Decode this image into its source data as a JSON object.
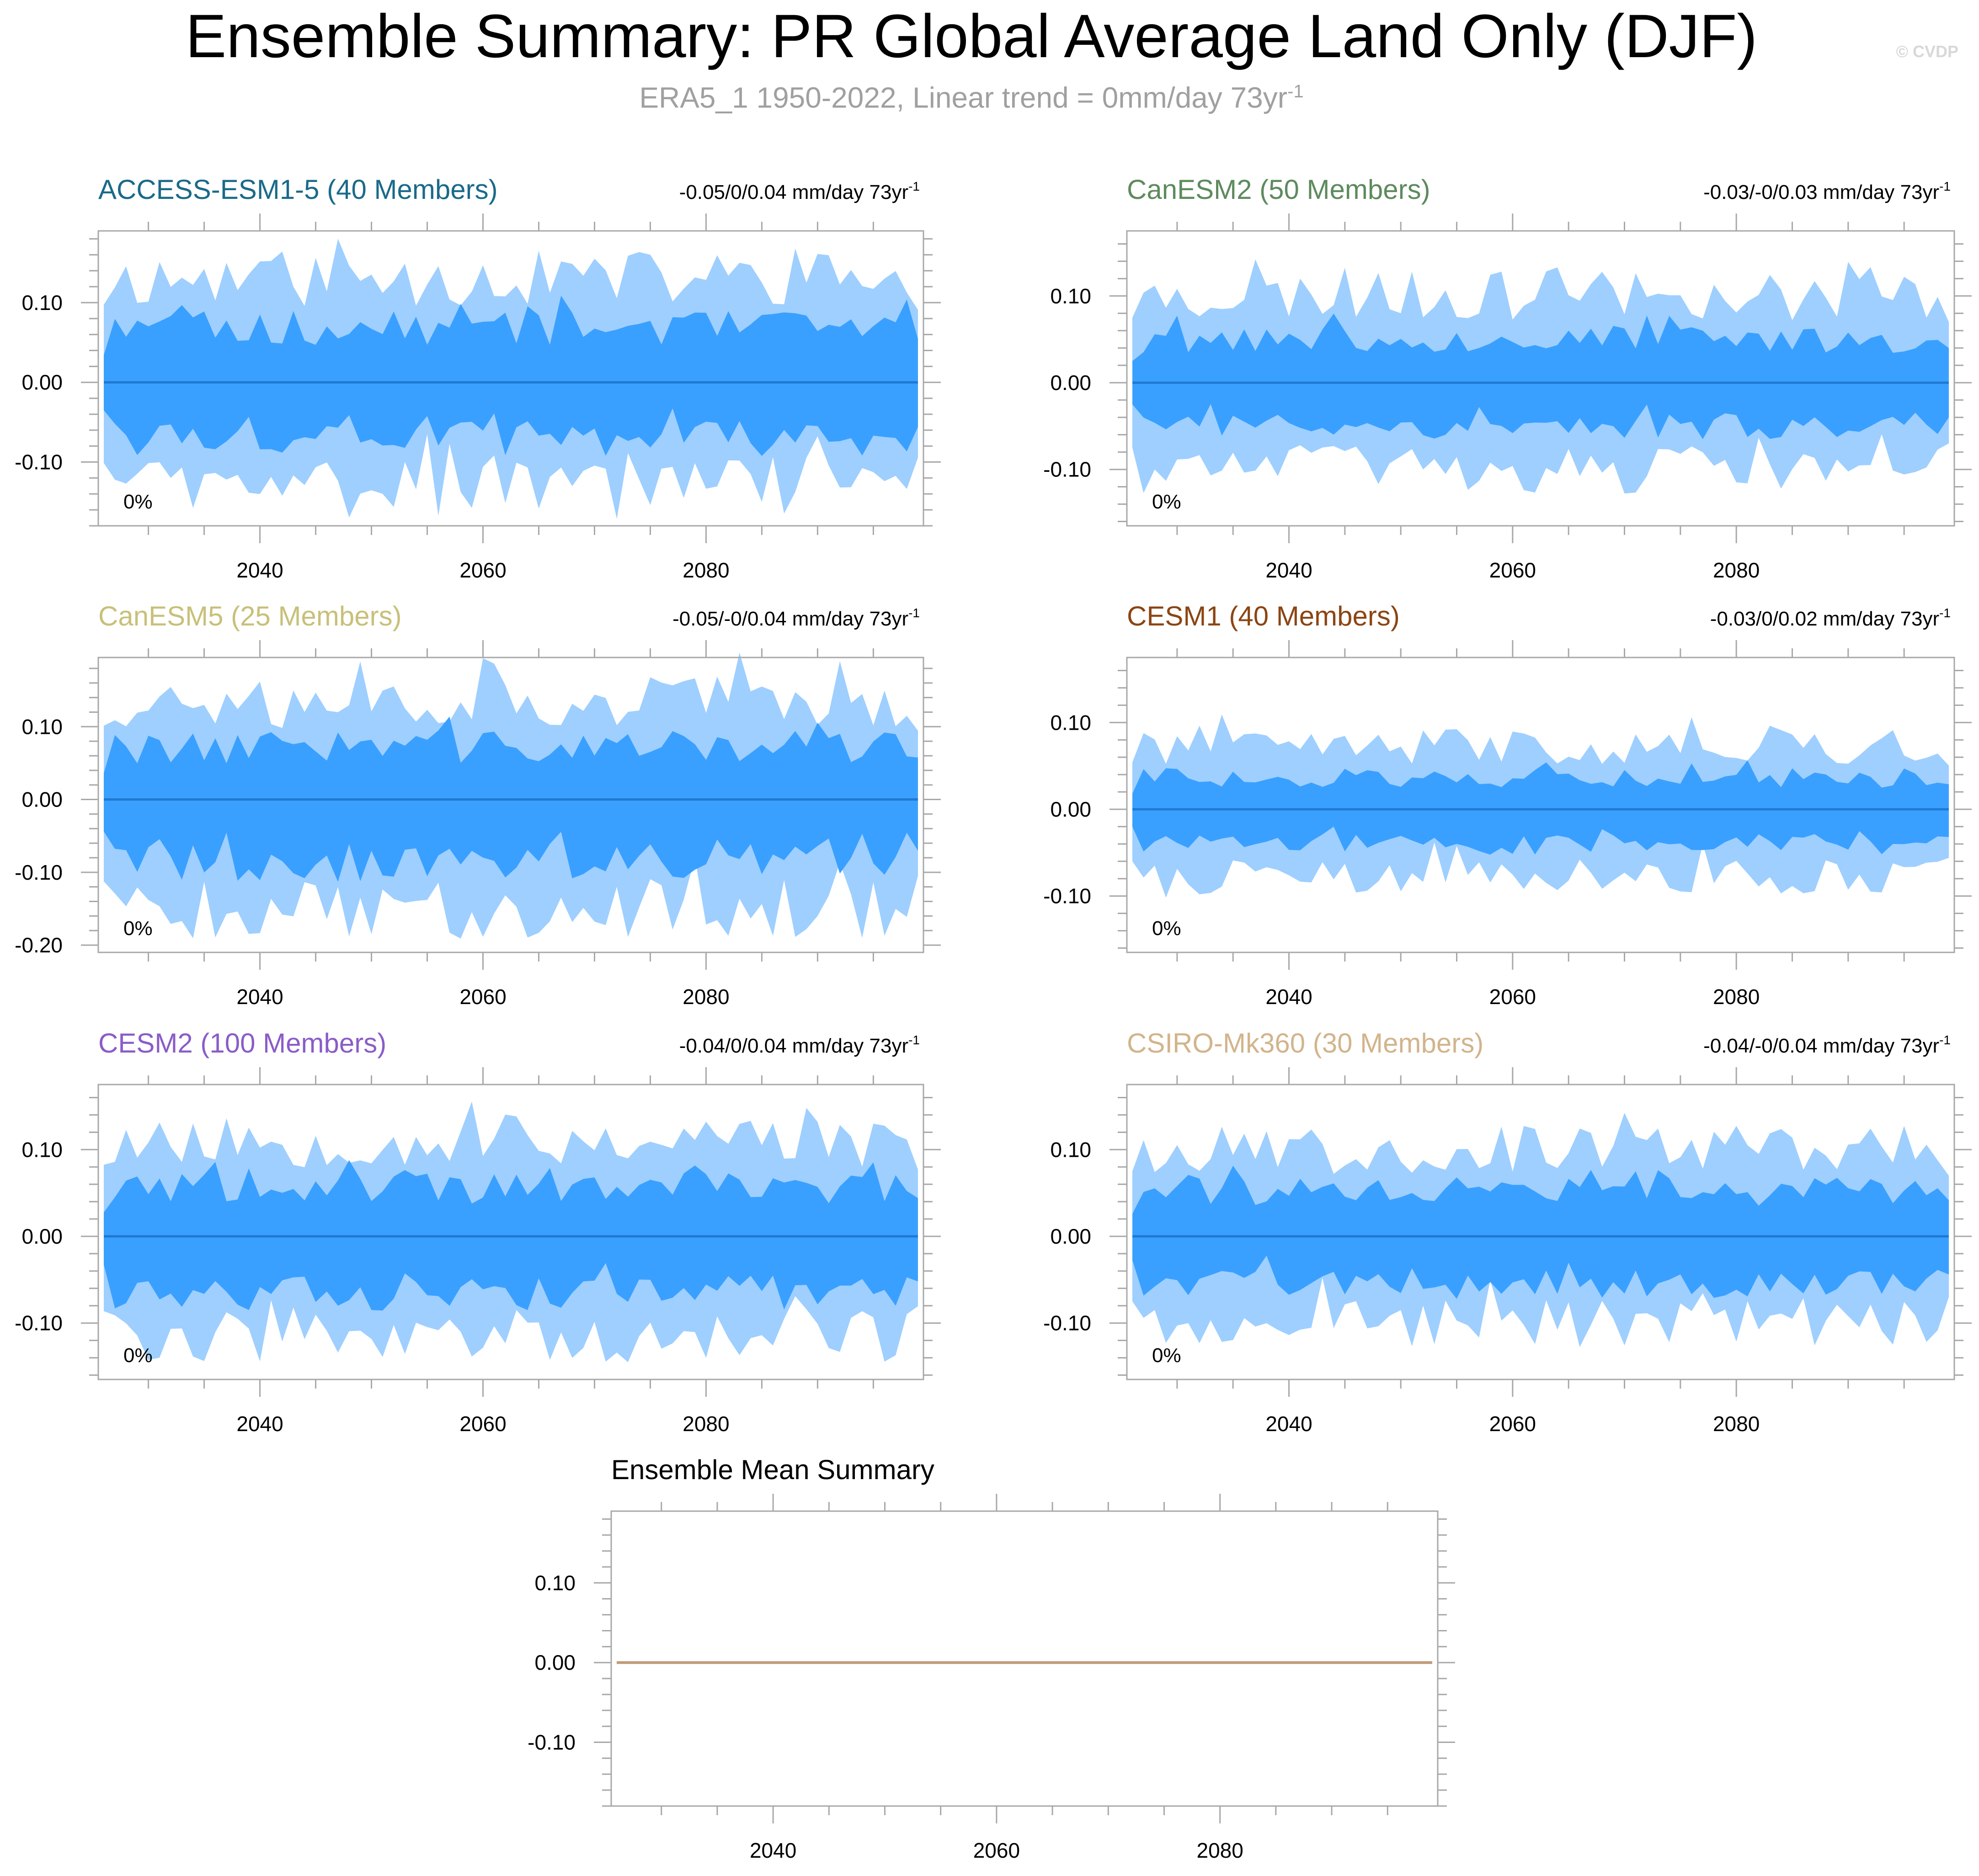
{
  "header": {
    "title": "Ensemble Summary: PR Global Average Land Only (DJF)",
    "subtitle": "ERA5_1 1950-2022, Linear trend = 0mm/day 73yr",
    "subtitle_sup": "-1",
    "copyright": "© CVDP"
  },
  "colors": {
    "outer_band": "#9ecfff",
    "inner_band": "#3aa0ff",
    "mean_line": "#1f78d0",
    "ensemble_mean_line": "#c09a78"
  },
  "chart_data": [
    {
      "type": "area",
      "title": "ACCESS-ESM1-5 (40 Members)",
      "title_color": "#1a6a8a",
      "trend_label": "-0.05/0/0.04 mm/day 73yr",
      "trend_sup": "-1",
      "percent_label": "0%",
      "xlim": [
        2026,
        2099
      ],
      "ylim": [
        -0.18,
        0.19
      ],
      "xticks": [
        2040,
        2060,
        2080
      ],
      "xtick_labels": [
        "2040",
        "2060",
        "2080"
      ],
      "yticks": [
        0.1,
        0.0,
        -0.1
      ],
      "ytick_labels": [
        "0.10",
        "0.00",
        "-0.10"
      ],
      "bands": {
        "outer_max": 0.13,
        "inner_max": 0.068,
        "inner_min": -0.07,
        "outer_min": -0.135,
        "seed": 11
      },
      "mean": 0.0
    },
    {
      "type": "area",
      "title": "CanESM2 (50 Members)",
      "title_color": "#5e8a5e",
      "trend_label": "-0.03/-0/0.03 mm/day 73yr",
      "trend_sup": "-1",
      "percent_label": "0%",
      "xlim": [
        2026,
        2099
      ],
      "ylim": [
        -0.165,
        0.175
      ],
      "xticks": [
        2040,
        2060,
        2080
      ],
      "xtick_labels": [
        "2040",
        "2060",
        "2080"
      ],
      "yticks": [
        0.1,
        0.0,
        -0.1
      ],
      "ytick_labels": [
        "0.10",
        "0.00",
        "-0.10"
      ],
      "bands": {
        "outer_max": 0.1,
        "inner_max": 0.05,
        "inner_min": -0.05,
        "outer_min": -0.1,
        "seed": 23
      },
      "mean": 0.0
    },
    {
      "type": "area",
      "title": "CanESM5 (25 Members)",
      "title_color": "#c8c07a",
      "trend_label": "-0.05/-0/0.04 mm/day 73yr",
      "trend_sup": "-1",
      "percent_label": "0%",
      "xlim": [
        2026,
        2099
      ],
      "ylim": [
        -0.21,
        0.195
      ],
      "xticks": [
        2040,
        2060,
        2080
      ],
      "xtick_labels": [
        "2040",
        "2060",
        "2080"
      ],
      "yticks": [
        0.1,
        0.0,
        -0.1,
        -0.2
      ],
      "ytick_labels": [
        "0.10",
        "0.00",
        "-0.10",
        "-0.20"
      ],
      "bands": {
        "outer_max": 0.135,
        "inner_max": 0.072,
        "inner_min": -0.088,
        "outer_min": -0.15,
        "seed": 37
      },
      "mean": 0.0
    },
    {
      "type": "area",
      "title": "CESM1 (40 Members)",
      "title_color": "#8b4513",
      "trend_label": "-0.03/0/0.02 mm/day 73yr",
      "trend_sup": "-1",
      "percent_label": "0%",
      "xlim": [
        2026,
        2099
      ],
      "ylim": [
        -0.165,
        0.175
      ],
      "xticks": [
        2040,
        2060,
        2080
      ],
      "xtick_labels": [
        "2040",
        "2060",
        "2080"
      ],
      "yticks": [
        0.1,
        0.0,
        -0.1
      ],
      "ytick_labels": [
        "0.10",
        "0.00",
        "-0.10"
      ],
      "bands": {
        "outer_max": 0.072,
        "inner_max": 0.036,
        "inner_min": -0.04,
        "outer_min": -0.08,
        "seed": 41
      },
      "mean": 0.0
    },
    {
      "type": "area",
      "title": "CESM2 (100 Members)",
      "title_color": "#8a5cc8",
      "trend_label": "-0.04/0/0.04 mm/day 73yr",
      "trend_sup": "-1",
      "percent_label": "0%",
      "xlim": [
        2026,
        2099
      ],
      "ylim": [
        -0.165,
        0.175
      ],
      "xticks": [
        2040,
        2060,
        2080
      ],
      "xtick_labels": [
        "2040",
        "2060",
        "2080"
      ],
      "yticks": [
        0.1,
        0.0,
        -0.1
      ],
      "ytick_labels": [
        "0.10",
        "0.00",
        "-0.10"
      ],
      "bands": {
        "outer_max": 0.11,
        "inner_max": 0.055,
        "inner_min": -0.065,
        "outer_min": -0.115,
        "seed": 53
      },
      "mean": 0.0
    },
    {
      "type": "area",
      "title": "CSIRO-Mk360 (30 Members)",
      "title_color": "#d2b48c",
      "trend_label": "-0.04/-0/0.04 mm/day 73yr",
      "trend_sup": "-1",
      "percent_label": "0%",
      "xlim": [
        2026,
        2099
      ],
      "ylim": [
        -0.165,
        0.175
      ],
      "xticks": [
        2040,
        2060,
        2080
      ],
      "xtick_labels": [
        "2040",
        "2060",
        "2080"
      ],
      "yticks": [
        0.1,
        0.0,
        -0.1
      ],
      "ytick_labels": [
        "0.10",
        "0.00",
        "-0.10"
      ],
      "bands": {
        "outer_max": 0.1,
        "inner_max": 0.052,
        "inner_min": -0.055,
        "outer_min": -0.1,
        "seed": 67
      },
      "mean": 0.0
    },
    {
      "type": "line",
      "title": "Ensemble Mean Summary",
      "title_color": "#000000",
      "xlim": [
        2026,
        2099
      ],
      "ylim": [
        -0.18,
        0.19
      ],
      "xticks": [
        2040,
        2060,
        2080
      ],
      "xtick_labels": [
        "2040",
        "2060",
        "2080"
      ],
      "yticks": [
        0.1,
        0.0,
        -0.1
      ],
      "ytick_labels": [
        "0.10",
        "0.00",
        "-0.10"
      ],
      "x": [
        2026,
        2099
      ],
      "y": [
        0.0,
        0.0
      ]
    }
  ]
}
